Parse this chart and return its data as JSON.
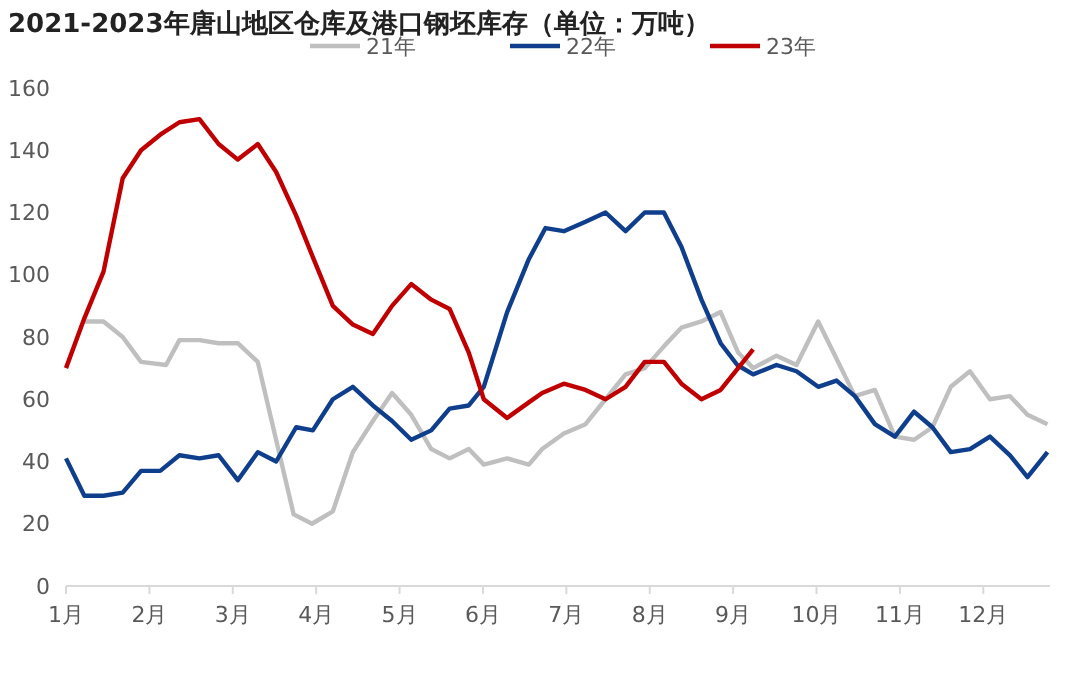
{
  "chart_data": {
    "type": "line",
    "title": "2021-2023年唐山地区仓库及港口钢坯库存（单位：万吨）",
    "xlim": [
      1,
      12.8
    ],
    "xticks": [
      {
        "value": 1,
        "label": "1月"
      },
      {
        "value": 2,
        "label": "2月"
      },
      {
        "value": 3,
        "label": "3月"
      },
      {
        "value": 4,
        "label": "4月"
      },
      {
        "value": 5,
        "label": "5月"
      },
      {
        "value": 6,
        "label": "6月"
      },
      {
        "value": 7,
        "label": "7月"
      },
      {
        "value": 8,
        "label": "8月"
      },
      {
        "value": 9,
        "label": "9月"
      },
      {
        "value": 10,
        "label": "10月"
      },
      {
        "value": 11,
        "label": "11月"
      },
      {
        "value": 12,
        "label": "12月"
      }
    ],
    "ylim": [
      0,
      160
    ],
    "yticks": [
      0,
      20,
      40,
      60,
      80,
      100,
      120,
      140,
      160
    ],
    "grid": false,
    "legend": "top",
    "marker": "none",
    "line_style": "solid",
    "series": [
      {
        "name": "21年",
        "color": "#bfbfbf",
        "x": [
          1.22,
          1.45,
          1.68,
          1.9,
          2.2,
          2.36,
          2.6,
          2.83,
          3.06,
          3.3,
          3.73,
          3.95,
          4.2,
          4.44,
          4.68,
          4.91,
          5.14,
          5.38,
          5.6,
          5.83,
          6.01,
          6.29,
          6.55,
          6.71,
          6.97,
          7.23,
          7.47,
          7.71,
          7.94,
          8.17,
          8.38,
          8.62,
          8.85,
          9.06,
          9.24,
          9.52,
          9.76,
          10.02,
          10.24,
          10.46,
          10.7,
          10.94,
          11.17,
          11.39,
          11.61,
          11.84,
          12.08,
          12.32,
          12.53,
          12.77
        ],
        "values": [
          85,
          85,
          80,
          72,
          71,
          79,
          79,
          78,
          78,
          72,
          23,
          20,
          24,
          43,
          53,
          62,
          55,
          44,
          41,
          44,
          39,
          41,
          39,
          44,
          49,
          52,
          60,
          68,
          70,
          77,
          83,
          85,
          88,
          75,
          70,
          74,
          71,
          85,
          73,
          61,
          63,
          48,
          47,
          51,
          64,
          69,
          60,
          61,
          55,
          52
        ]
      },
      {
        "name": "22年",
        "color": "#0f3f8c",
        "x": [
          1,
          1.22,
          1.45,
          1.68,
          1.9,
          2.13,
          2.36,
          2.6,
          2.83,
          3.06,
          3.3,
          3.52,
          3.76,
          3.96,
          4.2,
          4.44,
          4.68,
          4.91,
          5.14,
          5.38,
          5.6,
          5.83,
          6.01,
          6.29,
          6.55,
          6.75,
          6.97,
          7.23,
          7.47,
          7.71,
          7.94,
          8.17,
          8.38,
          8.62,
          8.85,
          9.05,
          9.24,
          9.52,
          9.76,
          10.02,
          10.24,
          10.46,
          10.7,
          10.94,
          11.17,
          11.39,
          11.61,
          11.84,
          12.08,
          12.32,
          12.53,
          12.77
        ],
        "values": [
          41,
          29,
          29,
          30,
          37,
          37,
          42,
          41,
          42,
          34,
          43,
          40,
          51,
          50,
          60,
          64,
          58,
          53,
          47,
          50,
          57,
          58,
          64,
          88,
          105,
          115,
          114,
          117,
          120,
          114,
          120,
          120,
          109,
          92,
          78,
          71,
          68,
          71,
          69,
          64,
          66,
          61,
          52,
          48,
          56,
          51,
          43,
          44,
          48,
          42,
          35,
          43
        ]
      },
      {
        "name": "23年",
        "color": "#c00000",
        "x": [
          1,
          1.22,
          1.45,
          1.68,
          1.9,
          2.13,
          2.36,
          2.6,
          2.83,
          3.06,
          3.3,
          3.52,
          3.76,
          3.97,
          4.2,
          4.44,
          4.68,
          4.91,
          5.14,
          5.38,
          5.6,
          5.83,
          6.01,
          6.29,
          6.55,
          6.71,
          6.97,
          7.23,
          7.47,
          7.71,
          7.94,
          8.17,
          8.38,
          8.62,
          8.85,
          9.06,
          9.24
        ],
        "values": [
          70,
          86,
          101,
          131,
          140,
          145,
          149,
          150,
          142,
          137,
          142,
          133,
          119,
          105,
          90,
          84,
          81,
          90,
          97,
          92,
          89,
          75,
          60,
          54,
          59,
          62,
          65,
          63,
          60,
          64,
          72,
          72,
          65,
          60,
          63,
          70,
          76
        ]
      }
    ]
  }
}
